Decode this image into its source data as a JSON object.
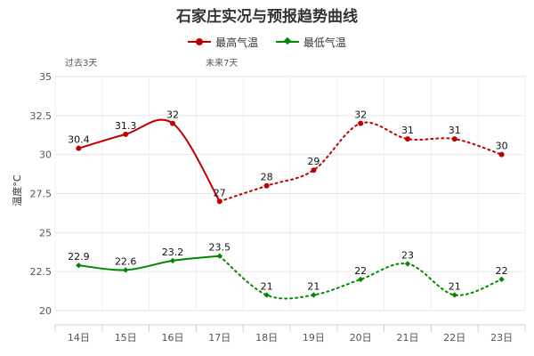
{
  "chart_data": {
    "type": "line",
    "title": "石家庄实况与预报趋势曲线",
    "ylabel": "温度°C",
    "categories": [
      "14日",
      "15日",
      "16日",
      "17日",
      "18日",
      "19日",
      "20日",
      "21日",
      "22日",
      "23日"
    ],
    "ylim": [
      20,
      35
    ],
    "yticks": [
      20,
      22.5,
      25,
      27.5,
      30,
      32.5,
      35
    ],
    "grid": true,
    "legend_position": "top",
    "period_labels": {
      "past": "过去3天",
      "future": "未来7天"
    },
    "observed_count": 4,
    "series": [
      {
        "name": "最高气温",
        "color": "#c00000",
        "marker": "circle",
        "values": [
          30.4,
          31.3,
          32,
          27,
          28,
          29,
          32,
          31,
          31,
          30
        ]
      },
      {
        "name": "最低气温",
        "color": "#008800",
        "marker": "diamond",
        "values": [
          22.9,
          22.6,
          23.2,
          23.5,
          21,
          21,
          22,
          23,
          21,
          22
        ]
      }
    ]
  }
}
